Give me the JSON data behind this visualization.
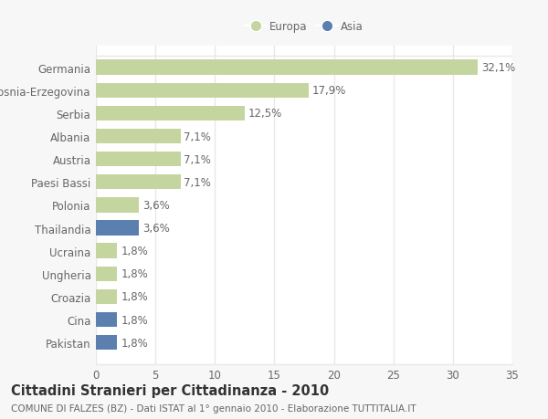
{
  "categories": [
    "Germania",
    "Bosnia-Erzegovina",
    "Serbia",
    "Albania",
    "Austria",
    "Paesi Bassi",
    "Polonia",
    "Thailandia",
    "Ucraina",
    "Ungheria",
    "Croazia",
    "Cina",
    "Pakistan"
  ],
  "values": [
    32.1,
    17.9,
    12.5,
    7.1,
    7.1,
    7.1,
    3.6,
    3.6,
    1.8,
    1.8,
    1.8,
    1.8,
    1.8
  ],
  "labels": [
    "32,1%",
    "17,9%",
    "12,5%",
    "7,1%",
    "7,1%",
    "7,1%",
    "3,6%",
    "3,6%",
    "1,8%",
    "1,8%",
    "1,8%",
    "1,8%",
    "1,8%"
  ],
  "colors": [
    "#c5d5a0",
    "#c5d5a0",
    "#c5d5a0",
    "#c5d5a0",
    "#c5d5a0",
    "#c5d5a0",
    "#c5d5a0",
    "#5b7faf",
    "#c5d5a0",
    "#c5d5a0",
    "#c5d5a0",
    "#5b7faf",
    "#5b7faf"
  ],
  "europa_color": "#c5d5a0",
  "asia_color": "#5b7faf",
  "xlim": [
    0,
    35
  ],
  "xticks": [
    0,
    5,
    10,
    15,
    20,
    25,
    30,
    35
  ],
  "title": "Cittadini Stranieri per Cittadinanza - 2010",
  "subtitle": "COMUNE DI FALZES (BZ) - Dati ISTAT al 1° gennaio 2010 - Elaborazione TUTTITALIA.IT",
  "bg_color": "#f7f7f7",
  "plot_bg_color": "#ffffff",
  "grid_color": "#e8e8e8",
  "text_color": "#666666",
  "title_color": "#333333",
  "bar_height": 0.65,
  "label_fontsize": 8.5,
  "title_fontsize": 10.5,
  "subtitle_fontsize": 7.5
}
